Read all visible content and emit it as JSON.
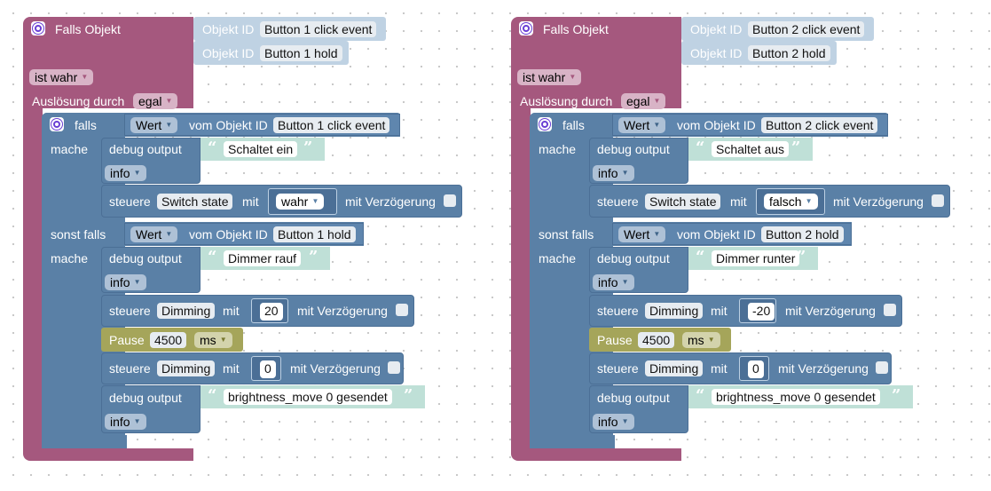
{
  "colors": {
    "event_block": "#a5587e",
    "logic_block": "#5a80a6",
    "id_block": "#bfd2e3",
    "text_block": "#bfe0d7",
    "pause_block": "#a5a55a",
    "icon_accent": "#6a3fd4"
  },
  "programs": [
    {
      "header": "Falls Objekt",
      "id_label": "Objekt ID",
      "ids": [
        "Button 1 click event",
        "Button 1 hold"
      ],
      "ist_wahr": "ist wahr",
      "trigger_label": "Auslösung durch",
      "trigger_value": "egal",
      "if_label": "falls",
      "elseif_label": "sonst falls",
      "do_label": "mache",
      "value_label": "Wert",
      "vom_label": "vom Objekt ID",
      "cond1_id": "Button 1 click event",
      "cond2_id": "Button 1 hold",
      "debug_label": "debug output",
      "info_label": "info",
      "steuere_label": "steuere",
      "mit_label": "mit",
      "delay_label": "mit Verzögerung",
      "debug1_text": "Schaltet ein",
      "switch_state": "Switch state",
      "bool_value": "wahr",
      "debug2_text": "Dimmer rauf",
      "dimming": "Dimming",
      "dim_value": "20",
      "pause_label": "Pause",
      "pause_value": "4500",
      "pause_unit": "ms",
      "dim_zero": "0",
      "debug3_text": "brightness_move 0 gesendet"
    },
    {
      "header": "Falls Objekt",
      "id_label": "Objekt ID",
      "ids": [
        "Button 2 click event",
        "Button 2 hold"
      ],
      "ist_wahr": "ist wahr",
      "trigger_label": "Auslösung durch",
      "trigger_value": "egal",
      "if_label": "falls",
      "elseif_label": "sonst falls",
      "do_label": "mache",
      "value_label": "Wert",
      "vom_label": "vom Objekt ID",
      "cond1_id": "Button 2 click event",
      "cond2_id": "Button 2 hold",
      "debug_label": "debug output",
      "info_label": "info",
      "steuere_label": "steuere",
      "mit_label": "mit",
      "delay_label": "mit Verzögerung",
      "debug1_text": "Schaltet aus",
      "switch_state": "Switch state",
      "bool_value": "falsch",
      "debug2_text": "Dimmer runter",
      "dimming": "Dimming",
      "dim_value": "-20",
      "pause_label": "Pause",
      "pause_value": "4500",
      "pause_unit": "ms",
      "dim_zero": "0",
      "debug3_text": "brightness_move 0 gesendet"
    }
  ]
}
